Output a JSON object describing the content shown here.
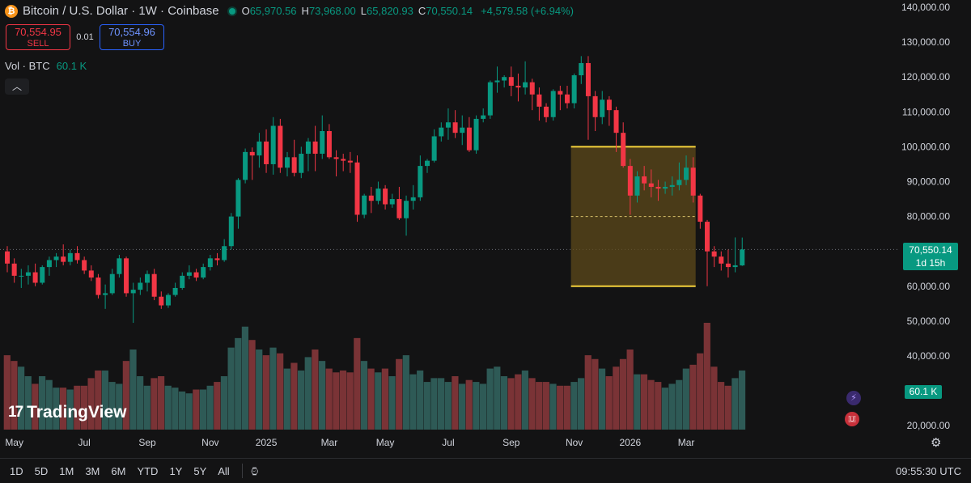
{
  "header": {
    "symbol_icon": "bitcoin-icon",
    "symbol_glyph": "₿",
    "title": "Bitcoin / U.S. Dollar · 1W · Coinbase",
    "ohlc": {
      "o_label": "O",
      "o": "65,970.56",
      "h_label": "H",
      "h": "73,968.00",
      "l_label": "L",
      "l": "65,820.93",
      "c_label": "C",
      "c": "70,550.14",
      "change": "+4,579.58 (+6.94%)"
    }
  },
  "trade": {
    "sell_price": "70,554.95",
    "sell_label": "SELL",
    "spread": "0.01",
    "buy_price": "70,554.96",
    "buy_label": "BUY"
  },
  "volume_legend": {
    "label": "Vol · BTC",
    "value": "60.1 K"
  },
  "collapse_glyph": "︿",
  "logo": {
    "mark": "17",
    "text": "TradingView"
  },
  "price_badge": {
    "price": "70,550.14",
    "countdown": "1d 15h"
  },
  "volume_badge": "60.1 K",
  "toolbar": {
    "ranges": [
      "1D",
      "5D",
      "1M",
      "3M",
      "6M",
      "YTD",
      "1Y",
      "5Y",
      "All"
    ],
    "calendar_icon": "calendar-icon",
    "time": "09:55:30 UTC"
  },
  "colors": {
    "up": "#089981",
    "down": "#f23645",
    "vol_up": "#2e5a56",
    "vol_down": "#7a3336",
    "box_fill": "#5d4a1a",
    "box_border": "#f5d23b"
  },
  "chart_data": {
    "type": "candlestick",
    "title": "Bitcoin / U.S. Dollar · 1W · Coinbase",
    "yaxis": {
      "ticks": [
        140000,
        130000,
        120000,
        110000,
        100000,
        90000,
        80000,
        70000,
        60000,
        50000,
        40000,
        30000,
        20000
      ],
      "tick_labels": [
        "140,000.00",
        "130,000.00",
        "120,000.00",
        "110,000.00",
        "100,000.00",
        "90,000.00",
        "80,000.00",
        "",
        "60,000.00",
        "50,000.00",
        "40,000.00",
        "",
        "20,000.00"
      ],
      "range": [
        17000,
        140000
      ]
    },
    "xaxis": {
      "labels": [
        "May",
        "Jul",
        "Sep",
        "Nov",
        "2025",
        "Mar",
        "May",
        "Jul",
        "Sep",
        "Nov",
        "2026",
        "Mar"
      ],
      "label_bar_index": [
        1,
        11,
        20,
        29,
        37,
        46,
        54,
        63,
        72,
        81,
        89,
        97
      ]
    },
    "price_range_box": {
      "from_bar": 81,
      "to_bar": 98,
      "top": 100000,
      "bottom": 60000,
      "mid": 80000
    },
    "last_price": 70550.14,
    "candles": [
      {
        "o": 70000,
        "h": 71500,
        "l": 64000,
        "c": 66500,
        "v": 3900
      },
      {
        "o": 66500,
        "h": 68000,
        "l": 61000,
        "c": 63000,
        "v": 3600
      },
      {
        "o": 63000,
        "h": 65000,
        "l": 59500,
        "c": 63000,
        "v": 3300
      },
      {
        "o": 63000,
        "h": 66000,
        "l": 60500,
        "c": 64000,
        "v": 2800
      },
      {
        "o": 64000,
        "h": 66500,
        "l": 60000,
        "c": 61000,
        "v": 2400
      },
      {
        "o": 61000,
        "h": 66000,
        "l": 60500,
        "c": 65500,
        "v": 2800
      },
      {
        "o": 65500,
        "h": 68500,
        "l": 63000,
        "c": 67500,
        "v": 2600
      },
      {
        "o": 67500,
        "h": 69500,
        "l": 65500,
        "c": 68500,
        "v": 2200
      },
      {
        "o": 68500,
        "h": 72000,
        "l": 66000,
        "c": 67000,
        "v": 2200
      },
      {
        "o": 67000,
        "h": 70500,
        "l": 66000,
        "c": 69500,
        "v": 2100
      },
      {
        "o": 69500,
        "h": 71500,
        "l": 66500,
        "c": 67500,
        "v": 2300
      },
      {
        "o": 67500,
        "h": 68500,
        "l": 63500,
        "c": 64500,
        "v": 2300
      },
      {
        "o": 64500,
        "h": 66000,
        "l": 61500,
        "c": 62500,
        "v": 2700
      },
      {
        "o": 62500,
        "h": 63500,
        "l": 56500,
        "c": 57500,
        "v": 3100
      },
      {
        "o": 57500,
        "h": 60500,
        "l": 53500,
        "c": 58000,
        "v": 3100
      },
      {
        "o": 58000,
        "h": 65000,
        "l": 57500,
        "c": 63500,
        "v": 2500
      },
      {
        "o": 63500,
        "h": 69000,
        "l": 62500,
        "c": 68000,
        "v": 2400
      },
      {
        "o": 68000,
        "h": 68500,
        "l": 57000,
        "c": 58000,
        "v": 3600
      },
      {
        "o": 58000,
        "h": 61000,
        "l": 49500,
        "c": 59000,
        "v": 4200
      },
      {
        "o": 59000,
        "h": 62500,
        "l": 57500,
        "c": 61000,
        "v": 2800
      },
      {
        "o": 61000,
        "h": 64500,
        "l": 58500,
        "c": 63500,
        "v": 2300
      },
      {
        "o": 63500,
        "h": 65000,
        "l": 56000,
        "c": 57000,
        "v": 2700
      },
      {
        "o": 57000,
        "h": 58500,
        "l": 53500,
        "c": 54500,
        "v": 2800
      },
      {
        "o": 54500,
        "h": 58000,
        "l": 53800,
        "c": 57500,
        "v": 2300
      },
      {
        "o": 57500,
        "h": 61000,
        "l": 57000,
        "c": 59500,
        "v": 2200
      },
      {
        "o": 59500,
        "h": 64000,
        "l": 59000,
        "c": 63000,
        "v": 2000
      },
      {
        "o": 63000,
        "h": 66000,
        "l": 62000,
        "c": 64000,
        "v": 1900
      },
      {
        "o": 64000,
        "h": 65000,
        "l": 61500,
        "c": 62500,
        "v": 2100
      },
      {
        "o": 62500,
        "h": 66500,
        "l": 62000,
        "c": 65500,
        "v": 2100
      },
      {
        "o": 65500,
        "h": 69000,
        "l": 64500,
        "c": 68000,
        "v": 2300
      },
      {
        "o": 68000,
        "h": 69500,
        "l": 66000,
        "c": 67500,
        "v": 2500
      },
      {
        "o": 67500,
        "h": 73500,
        "l": 67000,
        "c": 71500,
        "v": 2800
      },
      {
        "o": 71500,
        "h": 81000,
        "l": 70500,
        "c": 80000,
        "v": 4300
      },
      {
        "o": 80000,
        "h": 91000,
        "l": 76500,
        "c": 90500,
        "v": 4800
      },
      {
        "o": 90500,
        "h": 99500,
        "l": 89500,
        "c": 98500,
        "v": 5400
      },
      {
        "o": 98500,
        "h": 99800,
        "l": 90500,
        "c": 97500,
        "v": 4700
      },
      {
        "o": 97500,
        "h": 104000,
        "l": 94000,
        "c": 101500,
        "v": 4200
      },
      {
        "o": 101500,
        "h": 105000,
        "l": 92500,
        "c": 95000,
        "v": 3900
      },
      {
        "o": 95000,
        "h": 108500,
        "l": 92000,
        "c": 106000,
        "v": 4300
      },
      {
        "o": 106000,
        "h": 108000,
        "l": 92500,
        "c": 94000,
        "v": 4000
      },
      {
        "o": 94000,
        "h": 98500,
        "l": 91500,
        "c": 97000,
        "v": 3200
      },
      {
        "o": 97000,
        "h": 102000,
        "l": 91500,
        "c": 92500,
        "v": 3500
      },
      {
        "o": 92500,
        "h": 100000,
        "l": 91000,
        "c": 98000,
        "v": 3100
      },
      {
        "o": 98000,
        "h": 102500,
        "l": 93000,
        "c": 101500,
        "v": 3800
      },
      {
        "o": 101500,
        "h": 106000,
        "l": 93000,
        "c": 98000,
        "v": 4200
      },
      {
        "o": 98000,
        "h": 109000,
        "l": 96500,
        "c": 104500,
        "v": 3600
      },
      {
        "o": 104500,
        "h": 106500,
        "l": 96500,
        "c": 97000,
        "v": 3200
      },
      {
        "o": 97000,
        "h": 99000,
        "l": 91500,
        "c": 96500,
        "v": 3000
      },
      {
        "o": 96500,
        "h": 98000,
        "l": 93000,
        "c": 96000,
        "v": 3100
      },
      {
        "o": 96000,
        "h": 98500,
        "l": 92500,
        "c": 95500,
        "v": 3000
      },
      {
        "o": 95500,
        "h": 97500,
        "l": 78500,
        "c": 80500,
        "v": 4800
      },
      {
        "o": 80500,
        "h": 86500,
        "l": 79500,
        "c": 86000,
        "v": 3600
      },
      {
        "o": 86000,
        "h": 88500,
        "l": 81000,
        "c": 84500,
        "v": 3200
      },
      {
        "o": 84500,
        "h": 90000,
        "l": 83500,
        "c": 88000,
        "v": 3000
      },
      {
        "o": 88000,
        "h": 89000,
        "l": 82000,
        "c": 83500,
        "v": 3200
      },
      {
        "o": 83500,
        "h": 86500,
        "l": 82500,
        "c": 85000,
        "v": 2800
      },
      {
        "o": 85000,
        "h": 88500,
        "l": 79000,
        "c": 79500,
        "v": 3700
      },
      {
        "o": 79500,
        "h": 86000,
        "l": 74500,
        "c": 84500,
        "v": 3900
      },
      {
        "o": 84500,
        "h": 89000,
        "l": 82000,
        "c": 85500,
        "v": 2900
      },
      {
        "o": 85500,
        "h": 97500,
        "l": 84500,
        "c": 94500,
        "v": 3100
      },
      {
        "o": 94500,
        "h": 96500,
        "l": 92500,
        "c": 96000,
        "v": 2500
      },
      {
        "o": 96000,
        "h": 105000,
        "l": 95500,
        "c": 103000,
        "v": 2700
      },
      {
        "o": 103000,
        "h": 107000,
        "l": 101500,
        "c": 105500,
        "v": 2700
      },
      {
        "o": 105500,
        "h": 111000,
        "l": 102000,
        "c": 107000,
        "v": 2500
      },
      {
        "o": 107000,
        "h": 110500,
        "l": 102500,
        "c": 104000,
        "v": 2800
      },
      {
        "o": 104000,
        "h": 109000,
        "l": 100500,
        "c": 105500,
        "v": 2400
      },
      {
        "o": 105500,
        "h": 108500,
        "l": 98500,
        "c": 99000,
        "v": 2600
      },
      {
        "o": 99000,
        "h": 109000,
        "l": 98000,
        "c": 108000,
        "v": 2500
      },
      {
        "o": 108000,
        "h": 111000,
        "l": 107000,
        "c": 109000,
        "v": 2400
      },
      {
        "o": 109000,
        "h": 119000,
        "l": 108000,
        "c": 118500,
        "v": 3200
      },
      {
        "o": 118500,
        "h": 123000,
        "l": 115500,
        "c": 119000,
        "v": 3300
      },
      {
        "o": 119000,
        "h": 120500,
        "l": 117000,
        "c": 120000,
        "v": 2800
      },
      {
        "o": 120000,
        "h": 123000,
        "l": 114500,
        "c": 117500,
        "v": 2700
      },
      {
        "o": 117500,
        "h": 121000,
        "l": 113000,
        "c": 117000,
        "v": 2900
      },
      {
        "o": 117000,
        "h": 124500,
        "l": 115000,
        "c": 118500,
        "v": 3100
      },
      {
        "o": 118500,
        "h": 119500,
        "l": 110500,
        "c": 115000,
        "v": 2700
      },
      {
        "o": 115000,
        "h": 117000,
        "l": 107500,
        "c": 111500,
        "v": 2500
      },
      {
        "o": 111500,
        "h": 112500,
        "l": 107000,
        "c": 108500,
        "v": 2500
      },
      {
        "o": 108500,
        "h": 116500,
        "l": 107500,
        "c": 116000,
        "v": 2400
      },
      {
        "o": 116000,
        "h": 117500,
        "l": 110500,
        "c": 115000,
        "v": 2300
      },
      {
        "o": 115000,
        "h": 117500,
        "l": 111000,
        "c": 112500,
        "v": 2300
      },
      {
        "o": 112500,
        "h": 121000,
        "l": 111000,
        "c": 120500,
        "v": 2500
      },
      {
        "o": 120500,
        "h": 126000,
        "l": 118000,
        "c": 124000,
        "v": 2700
      },
      {
        "o": 124000,
        "h": 126000,
        "l": 102000,
        "c": 114500,
        "v": 3900
      },
      {
        "o": 114500,
        "h": 116000,
        "l": 104500,
        "c": 108500,
        "v": 3700
      },
      {
        "o": 108500,
        "h": 116000,
        "l": 106500,
        "c": 113500,
        "v": 3200
      },
      {
        "o": 113500,
        "h": 114500,
        "l": 106000,
        "c": 110500,
        "v": 2800
      },
      {
        "o": 110500,
        "h": 111500,
        "l": 98500,
        "c": 104000,
        "v": 3300
      },
      {
        "o": 104000,
        "h": 107000,
        "l": 94000,
        "c": 94500,
        "v": 3700
      },
      {
        "o": 94500,
        "h": 96500,
        "l": 80500,
        "c": 86000,
        "v": 4200
      },
      {
        "o": 86000,
        "h": 93000,
        "l": 84000,
        "c": 91500,
        "v": 2900
      },
      {
        "o": 91500,
        "h": 94500,
        "l": 87500,
        "c": 89500,
        "v": 2900
      },
      {
        "o": 89500,
        "h": 93500,
        "l": 85500,
        "c": 88500,
        "v": 2600
      },
      {
        "o": 88500,
        "h": 90500,
        "l": 84500,
        "c": 88000,
        "v": 2500
      },
      {
        "o": 88000,
        "h": 90000,
        "l": 86500,
        "c": 88500,
        "v": 2200
      },
      {
        "o": 88500,
        "h": 91500,
        "l": 86000,
        "c": 89000,
        "v": 2400
      },
      {
        "o": 89000,
        "h": 95500,
        "l": 87500,
        "c": 90500,
        "v": 2600
      },
      {
        "o": 90500,
        "h": 97500,
        "l": 89000,
        "c": 94000,
        "v": 3200
      },
      {
        "o": 94000,
        "h": 97000,
        "l": 84000,
        "c": 86000,
        "v": 3400
      },
      {
        "o": 86000,
        "h": 86500,
        "l": 76500,
        "c": 78500,
        "v": 4000
      },
      {
        "o": 78500,
        "h": 79000,
        "l": 60000,
        "c": 70000,
        "v": 5600
      },
      {
        "o": 70000,
        "h": 71500,
        "l": 65500,
        "c": 68500,
        "v": 3300
      },
      {
        "o": 68500,
        "h": 70000,
        "l": 64500,
        "c": 66500,
        "v": 2500
      },
      {
        "o": 66500,
        "h": 70500,
        "l": 62500,
        "c": 65500,
        "v": 2300
      },
      {
        "o": 65500,
        "h": 74000,
        "l": 64000,
        "c": 66000,
        "v": 2700
      },
      {
        "o": 65970.56,
        "h": 73968,
        "l": 65820.93,
        "c": 70550.14,
        "v": 3100
      }
    ]
  }
}
